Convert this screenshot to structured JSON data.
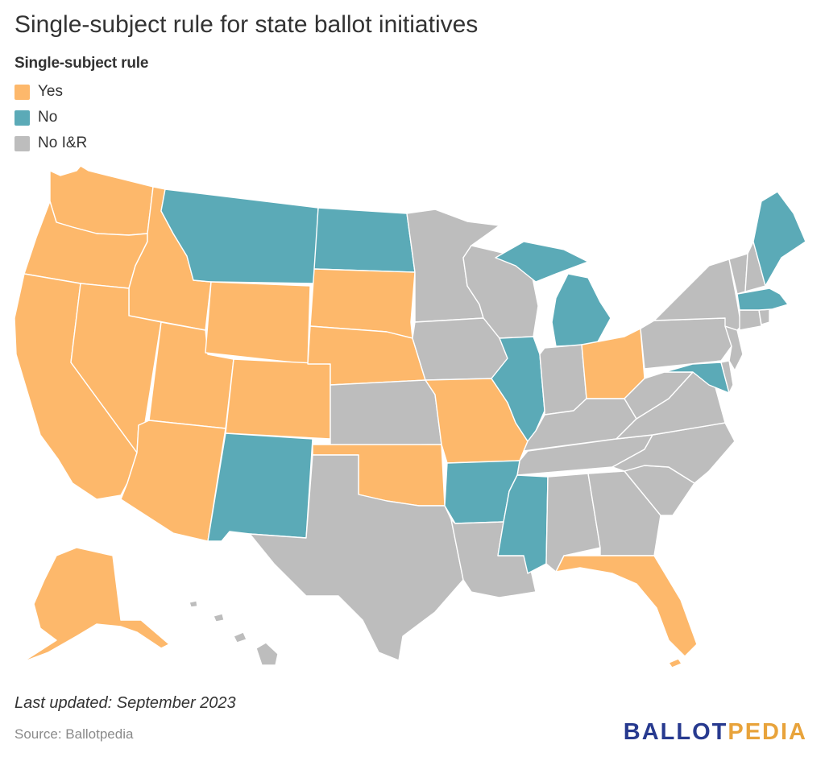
{
  "title": "Single-subject rule for state ballot initiatives",
  "legend": {
    "title": "Single-subject rule",
    "items": [
      {
        "label": "Yes",
        "color": "#FDB86B"
      },
      {
        "label": "No",
        "color": "#5BAAB7"
      },
      {
        "label": "No I&R",
        "color": "#BDBDBD"
      }
    ]
  },
  "colors": {
    "yes": "#FDB86B",
    "no": "#5BAAB7",
    "none": "#BDBDBD",
    "border": "#FFFFFF"
  },
  "states": {
    "Washington": "yes",
    "Oregon": "yes",
    "California": "yes",
    "Idaho": "yes",
    "Nevada": "yes",
    "Utah": "yes",
    "Arizona": "yes",
    "Wyoming": "yes",
    "Colorado": "yes",
    "South Dakota": "yes",
    "Nebraska": "yes",
    "Oklahoma": "yes",
    "Missouri": "yes",
    "Ohio": "yes",
    "Florida": "yes",
    "Alaska": "yes",
    "Montana": "no",
    "North Dakota": "no",
    "New Mexico": "no",
    "Arkansas": "no",
    "Mississippi": "no",
    "Illinois": "no",
    "Michigan": "no",
    "Maryland": "no",
    "Massachusetts": "no",
    "Maine": "no",
    "Minnesota": "none",
    "Wisconsin": "none",
    "Iowa": "none",
    "Kansas": "none",
    "Texas": "none",
    "Louisiana": "none",
    "Alabama": "none",
    "Georgia": "none",
    "Tennessee": "none",
    "Kentucky": "none",
    "Indiana": "none",
    "West Virginia": "none",
    "Virginia": "none",
    "North Carolina": "none",
    "South Carolina": "none",
    "Pennsylvania": "none",
    "New York": "none",
    "Vermont": "none",
    "New Hampshire": "none",
    "Connecticut": "none",
    "Rhode Island": "none",
    "New Jersey": "none",
    "Delaware": "none",
    "Hawaii": "none"
  },
  "footer": {
    "updated": "Last updated: September 2023",
    "source": "Source: Ballotpedia"
  },
  "logo": {
    "part1": "BALLOT",
    "part2": "PEDIA"
  }
}
